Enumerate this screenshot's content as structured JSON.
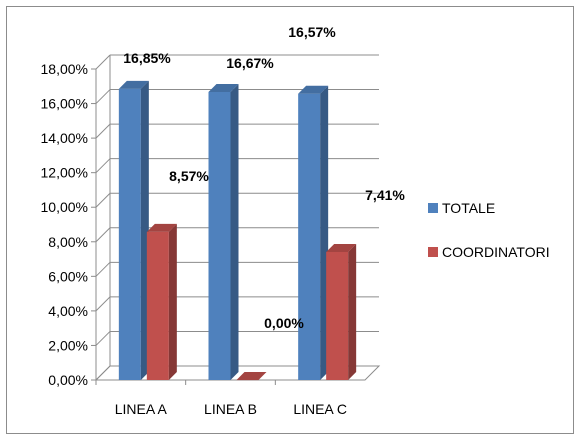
{
  "chart_data": {
    "type": "bar",
    "style": "3d-clustered-column",
    "categories": [
      "LINEA A",
      "LINEA B",
      "LINEA C"
    ],
    "series": [
      {
        "name": "TOTALE",
        "values": [
          16.85,
          16.67,
          16.57
        ],
        "labels": [
          "16,85%",
          "16,67%",
          "16,57%"
        ],
        "color": "#4f81bd"
      },
      {
        "name": "COORDINATORI",
        "values": [
          8.57,
          0.0,
          7.41
        ],
        "labels": [
          "8,57%",
          "0,00%",
          "7,41%"
        ],
        "color": "#c0504d"
      }
    ],
    "ylim": [
      0,
      18
    ],
    "yticks": [
      0,
      2,
      4,
      6,
      8,
      10,
      12,
      14,
      16,
      18
    ],
    "ytick_labels": [
      "0,00%",
      "2,00%",
      "4,00%",
      "6,00%",
      "8,00%",
      "10,00%",
      "12,00%",
      "14,00%",
      "16,00%",
      "18,00%"
    ],
    "grid": true,
    "legend": "right"
  }
}
